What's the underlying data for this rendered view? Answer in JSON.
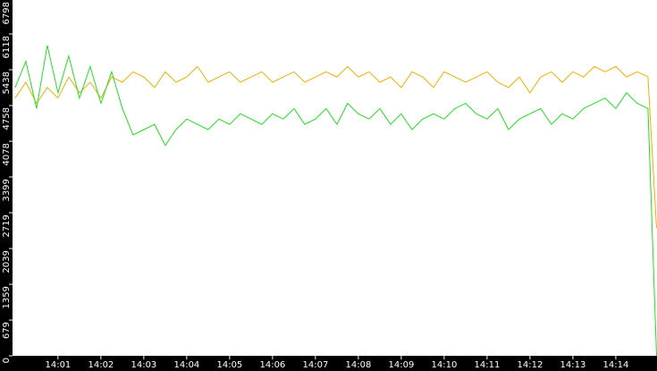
{
  "chart_data": {
    "type": "line",
    "x": [
      0,
      0.25,
      0.5,
      0.75,
      1,
      1.25,
      1.5,
      1.75,
      2,
      2.25,
      2.5,
      2.75,
      3,
      3.25,
      3.5,
      3.75,
      4,
      4.25,
      4.5,
      4.75,
      5,
      5.25,
      5.5,
      5.75,
      6,
      6.25,
      6.5,
      6.75,
      7,
      7.25,
      7.5,
      7.75,
      8,
      8.25,
      8.5,
      8.75,
      9,
      9.25,
      9.5,
      9.75,
      10,
      10.25,
      10.5,
      10.75,
      11,
      11.25,
      11.5,
      11.75,
      12,
      12.25,
      12.5,
      12.75,
      13,
      13.25,
      13.5,
      13.75,
      14,
      14.25,
      14.5,
      14.75,
      14.95
    ],
    "series": [
      {
        "color": "#f0b000",
        "values": [
          4900,
          5200,
          4800,
          5100,
          4900,
          5300,
          5000,
          5200,
          4900,
          5300,
          5200,
          5400,
          5300,
          5100,
          5400,
          5200,
          5300,
          5500,
          5200,
          5300,
          5400,
          5200,
          5300,
          5400,
          5200,
          5300,
          5400,
          5200,
          5300,
          5400,
          5300,
          5500,
          5300,
          5400,
          5200,
          5300,
          5100,
          5400,
          5300,
          5100,
          5400,
          5300,
          5200,
          5300,
          5400,
          5200,
          5100,
          5300,
          5000,
          5300,
          5400,
          5200,
          5400,
          5300,
          5500,
          5400,
          5500,
          5300,
          5400,
          5300,
          2430
        ]
      },
      {
        "color": "#22dd22",
        "values": [
          5100,
          5600,
          4700,
          5900,
          5000,
          5700,
          4900,
          5500,
          4800,
          5400,
          4700,
          4200,
          4300,
          4400,
          4000,
          4300,
          4500,
          4400,
          4300,
          4500,
          4400,
          4600,
          4500,
          4400,
          4600,
          4500,
          4700,
          4400,
          4500,
          4700,
          4400,
          4800,
          4600,
          4500,
          4700,
          4400,
          4600,
          4300,
          4500,
          4600,
          4500,
          4700,
          4800,
          4600,
          4500,
          4700,
          4300,
          4500,
          4600,
          4700,
          4400,
          4600,
          4500,
          4700,
          4800,
          4900,
          4700,
          5000,
          4800,
          4700,
          0
        ]
      }
    ],
    "xlim": [
      -0.06,
      14.96
    ],
    "xticks": [
      {
        "value": 1,
        "label": "14:01"
      },
      {
        "value": 2,
        "label": "14:02"
      },
      {
        "value": 3,
        "label": "14:03"
      },
      {
        "value": 4,
        "label": "14:04"
      },
      {
        "value": 5,
        "label": "14:05"
      },
      {
        "value": 6,
        "label": "14:06"
      },
      {
        "value": 7,
        "label": "14:07"
      },
      {
        "value": 8,
        "label": "14:08"
      },
      {
        "value": 9,
        "label": "14:09"
      },
      {
        "value": 10,
        "label": "14:10"
      },
      {
        "value": 11,
        "label": "14:11"
      },
      {
        "value": 12,
        "label": "14:12"
      },
      {
        "value": 13,
        "label": "14:13"
      },
      {
        "value": 14,
        "label": "14:14"
      }
    ],
    "ylim": [
      0,
      6798
    ],
    "yticks": [
      0,
      679,
      1359,
      2039,
      2719,
      3399,
      4078,
      4758,
      5438,
      6118,
      6798
    ]
  }
}
